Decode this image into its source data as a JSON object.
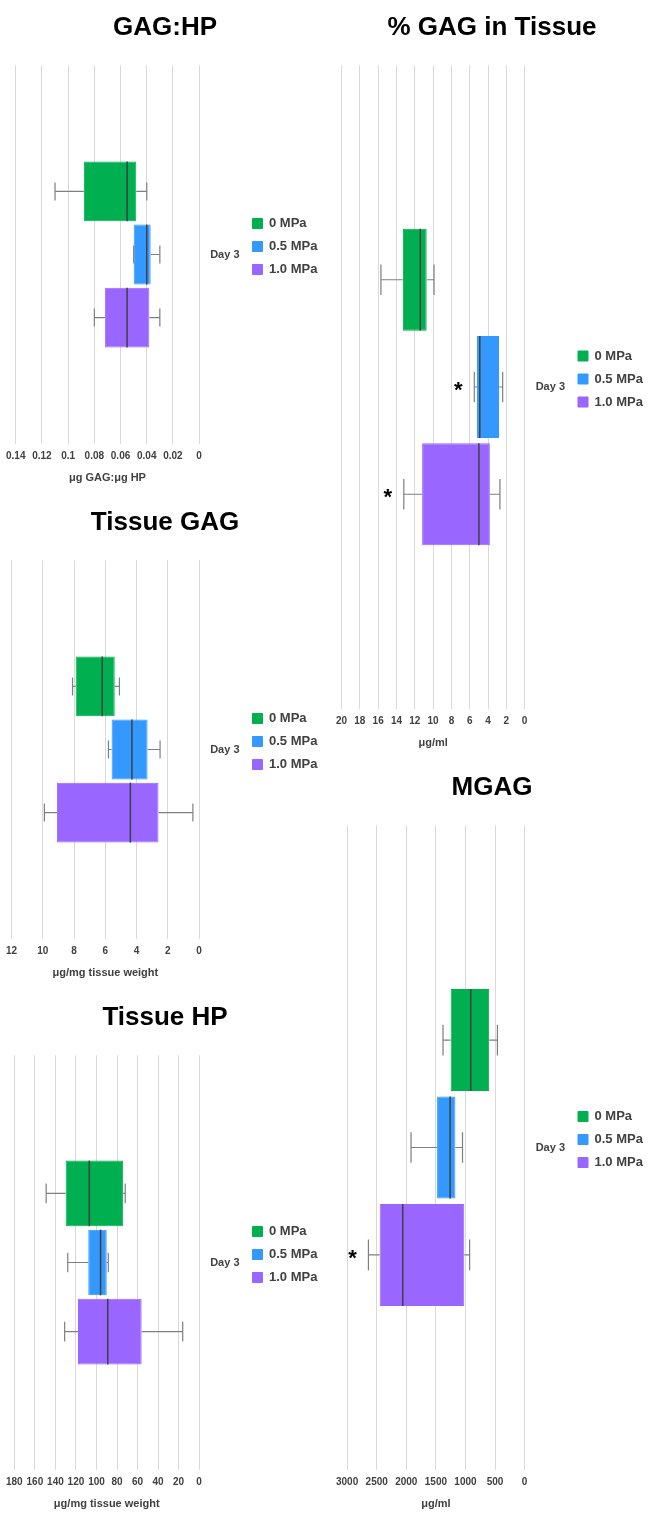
{
  "chart_data": [
    {
      "type": "box",
      "orientation": "horizontal",
      "title": "Tissue HP",
      "xlabel": "μg/mg tissue weight",
      "categories": [
        "Day 3"
      ],
      "xlim": [
        180,
        0
      ],
      "xticks": [
        180,
        160,
        140,
        120,
        100,
        80,
        60,
        40,
        20,
        0
      ],
      "grid": "x",
      "legend": "right",
      "series": [
        {
          "name": "0 MPa",
          "color": "#00b050",
          "boxes": [
            {
              "low": 72,
              "q1": 74,
              "median": 107,
              "q3": 130,
              "high": 149
            }
          ]
        },
        {
          "name": "0.5 MPa",
          "color": "#3399ff",
          "boxes": [
            {
              "low": 88.5,
              "q1": 90,
              "median": 96,
              "q3": 108,
              "high": 128
            }
          ]
        },
        {
          "name": "1.0 MPa",
          "color": "#9966ff",
          "boxes": [
            {
              "low": 16,
              "q1": 56,
              "median": 89,
              "q3": 118,
              "high": 131
            }
          ]
        }
      ]
    },
    {
      "type": "box",
      "orientation": "horizontal",
      "title": "Tissue GAG",
      "xlabel": "μg/mg tissue weight",
      "categories": [
        "Day 3"
      ],
      "xlim": [
        12,
        0
      ],
      "xticks": [
        12,
        10,
        8,
        6,
        4,
        2,
        0
      ],
      "grid": "x",
      "legend": "right",
      "series": [
        {
          "name": "0 MPa",
          "color": "#00b050",
          "boxes": [
            {
              "low": 5.1,
              "q1": 5.4,
              "median": 6.2,
              "q3": 7.9,
              "high": 8.1
            }
          ]
        },
        {
          "name": "0.5 MPa",
          "color": "#3399ff",
          "boxes": [
            {
              "low": 2.5,
              "q1": 3.3,
              "median": 4.3,
              "q3": 5.6,
              "high": 5.8
            }
          ]
        },
        {
          "name": "1.0 MPa",
          "color": "#9966ff",
          "boxes": [
            {
              "low": 0.4,
              "q1": 2.6,
              "median": 4.4,
              "q3": 9.1,
              "high": 9.9
            }
          ]
        }
      ]
    },
    {
      "type": "box",
      "orientation": "horizontal",
      "title": "GAG:HP",
      "xlabel": "μg GAG:μg HP",
      "categories": [
        "Day 3"
      ],
      "xlim": [
        0.14,
        0
      ],
      "xticks": [
        0.14,
        0.12,
        0.1,
        0.08,
        0.06,
        0.04,
        0.02,
        0
      ],
      "grid": "x",
      "legend": "right",
      "series": [
        {
          "name": "0 MPa",
          "color": "#00b050",
          "boxes": [
            {
              "low": 0.04,
              "q1": 0.048,
              "median": 0.055,
              "q3": 0.088,
              "high": 0.11
            }
          ]
        },
        {
          "name": "0.5 MPa",
          "color": "#3399ff",
          "boxes": [
            {
              "low": 0.03,
              "q1": 0.037,
              "median": 0.04,
              "q3": 0.05,
              "high": 0.05
            }
          ]
        },
        {
          "name": "1.0 MPa",
          "color": "#9966ff",
          "boxes": [
            {
              "low": 0.03,
              "q1": 0.038,
              "median": 0.055,
              "q3": 0.072,
              "high": 0.08
            }
          ]
        }
      ]
    },
    {
      "type": "box",
      "orientation": "horizontal",
      "title": "MGAG",
      "xlabel": "μg/ml",
      "categories": [
        "Day 3"
      ],
      "xlim": [
        3000,
        0
      ],
      "xticks": [
        3000,
        2500,
        2000,
        1500,
        1000,
        500,
        0
      ],
      "grid": "x",
      "legend": "right",
      "annotations": [
        "*"
      ],
      "series": [
        {
          "name": "0 MPa",
          "color": "#00b050",
          "boxes": [
            {
              "low": 460,
              "q1": 600,
              "median": 910,
              "q3": 1250,
              "high": 1380
            }
          ]
        },
        {
          "name": "0.5 MPa",
          "color": "#3399ff",
          "boxes": [
            {
              "low": 1050,
              "q1": 1170,
              "median": 1260,
              "q3": 1480,
              "high": 1920
            }
          ]
        },
        {
          "name": "1.0 MPa",
          "color": "#9966ff",
          "boxes": [
            {
              "low": 930,
              "q1": 1020,
              "median": 2060,
              "q3": 2450,
              "high": 2640
            }
          ]
        }
      ]
    },
    {
      "type": "box",
      "orientation": "horizontal",
      "title": "% GAG in Tissue",
      "xlabel": "μg/ml",
      "categories": [
        "Day 3"
      ],
      "xlim": [
        20,
        0
      ],
      "xticks": [
        20,
        18,
        16,
        14,
        12,
        10,
        8,
        6,
        4,
        2,
        0
      ],
      "grid": "x",
      "legend": "right",
      "annotations": [
        "*",
        "*"
      ],
      "series": [
        {
          "name": "0 MPa",
          "color": "#00b050",
          "boxes": [
            {
              "low": 9.9,
              "q1": 10.7,
              "median": 11.4,
              "q3": 13.3,
              "high": 15.7
            }
          ]
        },
        {
          "name": "0.5 MPa",
          "color": "#3399ff",
          "boxes": [
            {
              "low": 2.4,
              "q1": 2.8,
              "median": 4.9,
              "q3": 5.2,
              "high": 5.5
            }
          ]
        },
        {
          "name": "1.0 MPa",
          "color": "#9966ff",
          "boxes": [
            {
              "low": 2.7,
              "q1": 3.8,
              "median": 5.0,
              "q3": 11.2,
              "high": 13.2
            }
          ]
        }
      ]
    }
  ]
}
